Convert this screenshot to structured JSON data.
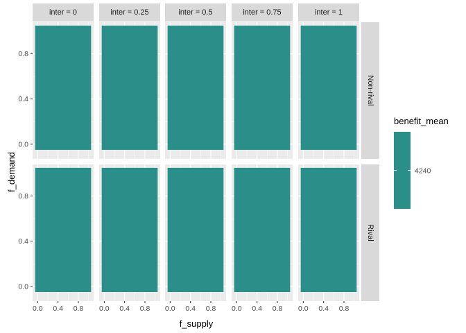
{
  "chart_data": {
    "type": "heatmap",
    "x_variable": "f_supply",
    "y_variable": "f_demand",
    "fill_variable": "benefit_mean",
    "facet_cols": [
      "inter = 0",
      "inter = 0.25",
      "inter = 0.5",
      "inter = 0.75",
      "inter = 1"
    ],
    "facet_rows": [
      "Non-rival",
      "Rival"
    ],
    "x_ticks": [
      0.0,
      0.4,
      0.8
    ],
    "x_tick_labels": [
      "0.0",
      "0.4",
      "0.8"
    ],
    "y_ticks": [
      0.0,
      0.4,
      0.8
    ],
    "y_tick_labels": [
      "0.0",
      "0.4",
      "0.8"
    ],
    "xlim": [
      -0.1,
      1.1
    ],
    "ylim": [
      -0.13,
      1.08
    ],
    "tile_extent": {
      "x": [
        -0.05,
        1.05
      ],
      "y": [
        -0.05,
        1.05
      ]
    },
    "fill_value": 4240,
    "fill_color": "#2a8f89",
    "legend": {
      "title": "benefit_mean",
      "labels": [
        "4240"
      ],
      "position": "right"
    },
    "xlabel": "f_supply",
    "ylabel": "f_demand",
    "grid": true
  },
  "colors": {
    "panel_bg": "#ebebeb",
    "strip_bg": "#d9d9d9",
    "grid_major": "#ffffff",
    "tile": "#2a8f89"
  }
}
